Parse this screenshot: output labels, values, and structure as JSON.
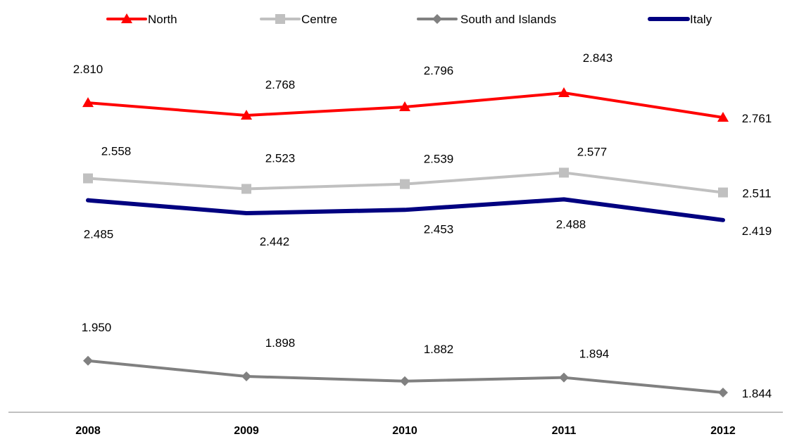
{
  "chart_data": {
    "type": "line",
    "categories": [
      "2008",
      "2009",
      "2010",
      "2011",
      "2012"
    ],
    "series": [
      {
        "name": "North",
        "values": [
          2.81,
          2.768,
          2.796,
          2.843,
          2.761
        ],
        "labels": [
          "2.810",
          "2.768",
          "2.796",
          "2.843",
          "2.761"
        ],
        "color": "#ff0000",
        "marker": "triangle"
      },
      {
        "name": "Centre",
        "values": [
          2.558,
          2.523,
          2.539,
          2.577,
          2.511
        ],
        "labels": [
          "2.558",
          "2.523",
          "2.539",
          "2.577",
          "2.511"
        ],
        "color": "#c0c0c0",
        "marker": "square"
      },
      {
        "name": "South and Islands",
        "values": [
          1.95,
          1.898,
          1.882,
          1.894,
          1.844
        ],
        "labels": [
          "1.950",
          "1.898",
          "1.882",
          "1.894",
          "1.844"
        ],
        "color": "#808080",
        "marker": "diamond"
      },
      {
        "name": "Italy",
        "values": [
          2.485,
          2.442,
          2.453,
          2.488,
          2.419
        ],
        "labels": [
          "2.485",
          "2.442",
          "2.453",
          "2.488",
          "2.419"
        ],
        "color": "#000080",
        "marker": "none"
      }
    ],
    "title": "",
    "xlabel": "",
    "ylabel": "",
    "legend_position": "top",
    "grid": false
  }
}
